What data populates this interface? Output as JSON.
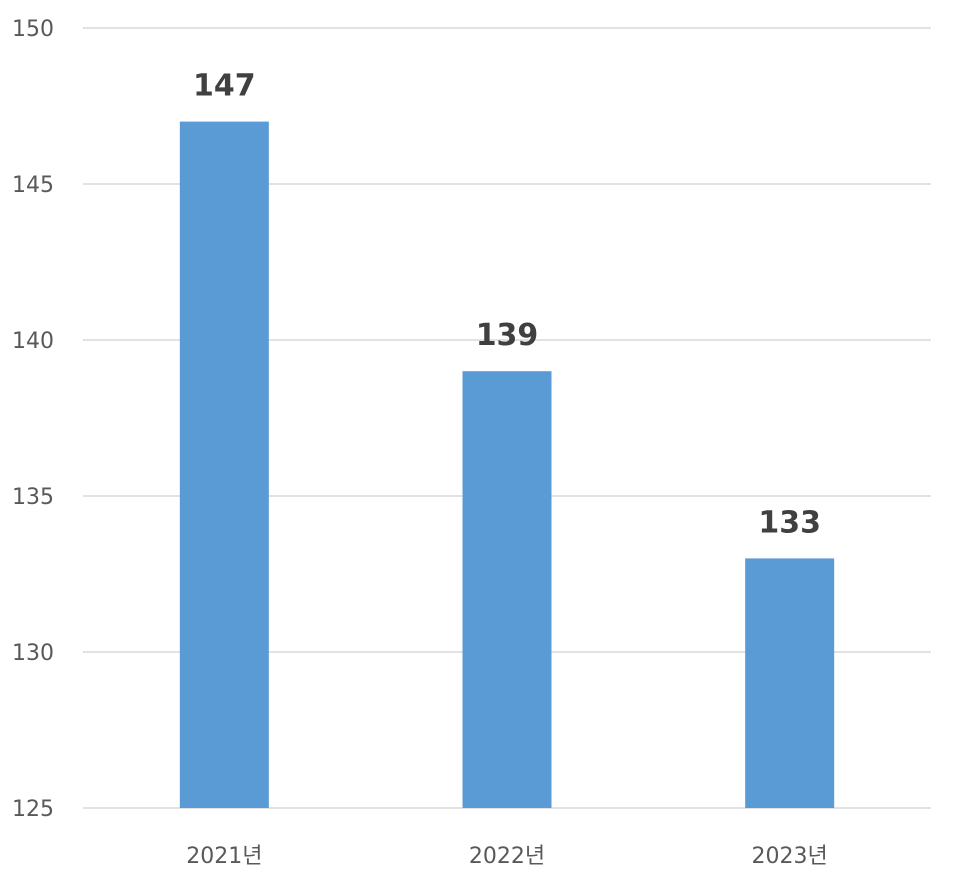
{
  "chart_data": {
    "type": "bar",
    "title": "",
    "xlabel": "",
    "ylabel": "",
    "categories": [
      "2021년",
      "2022년",
      "2023년"
    ],
    "values": [
      147,
      139,
      133
    ],
    "data_labels": [
      "147",
      "139",
      "133"
    ],
    "ylim": [
      125,
      150
    ],
    "yticks": [
      125,
      130,
      135,
      140,
      145,
      150
    ],
    "ytick_labels": [
      "125",
      "130",
      "135",
      "140",
      "145",
      "150"
    ],
    "grid": true,
    "legend": "none",
    "bar_color": "#5B9BD5"
  }
}
